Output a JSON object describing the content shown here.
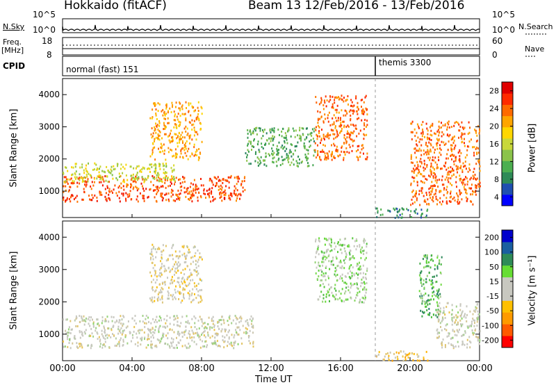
{
  "header": {
    "title_left": "Hokkaido (fitACF)",
    "title_right": "Beam 13  12/Feb/2016 - 13/Feb/2016"
  },
  "status_panel": {
    "nsky_label": "N.Sky",
    "nsky_ticks": [
      "10^5",
      "10^0"
    ],
    "nsearch_label": "N.Search",
    "nsearch_ticks": [
      "10^5",
      "10^0"
    ],
    "freq_label_line1": "Freq.",
    "freq_label_line2": "[MHz]",
    "freq_ticks": [
      "18",
      "8"
    ],
    "nave_label": "Nave",
    "nave_ticks": [
      "60",
      "0"
    ],
    "cpid_label": "CPID",
    "cpid_modes": [
      {
        "name": "normal (fast) 151",
        "start_hour": 0
      },
      {
        "name": "themis 3300",
        "start_hour": 18
      }
    ]
  },
  "x_axis": {
    "label": "Time UT",
    "ticks": [
      "00:00",
      "04:00",
      "08:00",
      "12:00",
      "16:00",
      "20:00",
      "00:00"
    ],
    "range_hours": [
      0,
      24
    ]
  },
  "chart_data": [
    {
      "type": "heatmap",
      "name": "power",
      "ylabel": "Slant Range [km]",
      "yticks": [
        "4000",
        "3000",
        "2000",
        "1000"
      ],
      "ylim": [
        180,
        4500
      ],
      "colorbar_label": "Power [dB]",
      "colorbar_ticks": [
        "28",
        "24",
        "20",
        "16",
        "12",
        "8",
        "4"
      ],
      "colorbar_colors": [
        "#0000ff",
        "#1f4fb0",
        "#2e8b57",
        "#4caf50",
        "#8bc34a",
        "#c8d83a",
        "#ffd700",
        "#ffa500",
        "#ff6a00",
        "#ff2a00",
        "#e00000"
      ],
      "regions": [
        {
          "t": [
            0.0,
            10.5
          ],
          "r": [
            700,
            1500
          ],
          "level": 0.85
        },
        {
          "t": [
            0.0,
            6.5
          ],
          "r": [
            1300,
            1900
          ],
          "level": 0.5
        },
        {
          "t": [
            5.0,
            8.0
          ],
          "r": [
            2000,
            3800
          ],
          "level": 0.7
        },
        {
          "t": [
            10.5,
            14.5
          ],
          "r": [
            1800,
            3000
          ],
          "level": 0.3
        },
        {
          "t": [
            14.5,
            17.5
          ],
          "r": [
            2000,
            4000
          ],
          "level": 0.8
        },
        {
          "t": [
            18.0,
            21.0
          ],
          "r": [
            200,
            500
          ],
          "level": 0.2
        },
        {
          "t": [
            20.0,
            24.0
          ],
          "r": [
            600,
            3200
          ],
          "level": 0.8
        }
      ]
    },
    {
      "type": "heatmap",
      "name": "velocity",
      "ylabel": "Slant Range [km]",
      "yticks": [
        "4000",
        "3000",
        "2000",
        "1000"
      ],
      "ylim": [
        180,
        4500
      ],
      "colorbar_label": "Velocity [m s⁻¹]",
      "colorbar_ticks": [
        "200",
        "100",
        "50",
        "15",
        "-15",
        "-50",
        "-100",
        "-200"
      ],
      "colorbar_colors": [
        "#ff0000",
        "#ff5a00",
        "#ff9a00",
        "#ffc000",
        "#c8c8c0",
        "#c8c8c0",
        "#66dd33",
        "#2e8b57",
        "#1a5fa0",
        "#0000cc"
      ],
      "regions": [
        {
          "t": [
            0.0,
            11.0
          ],
          "r": [
            600,
            1600
          ],
          "level": 0.5
        },
        {
          "t": [
            5.0,
            8.0
          ],
          "r": [
            2000,
            3800
          ],
          "level": 0.45
        },
        {
          "t": [
            14.5,
            17.5
          ],
          "r": [
            2000,
            4000
          ],
          "level": 0.6
        },
        {
          "t": [
            18.0,
            21.0
          ],
          "r": [
            200,
            500
          ],
          "level": 0.35
        },
        {
          "t": [
            20.5,
            21.8
          ],
          "r": [
            1500,
            3500
          ],
          "level": 0.7
        },
        {
          "t": [
            21.5,
            24.0
          ],
          "r": [
            600,
            2000
          ],
          "level": 0.5
        }
      ]
    }
  ]
}
